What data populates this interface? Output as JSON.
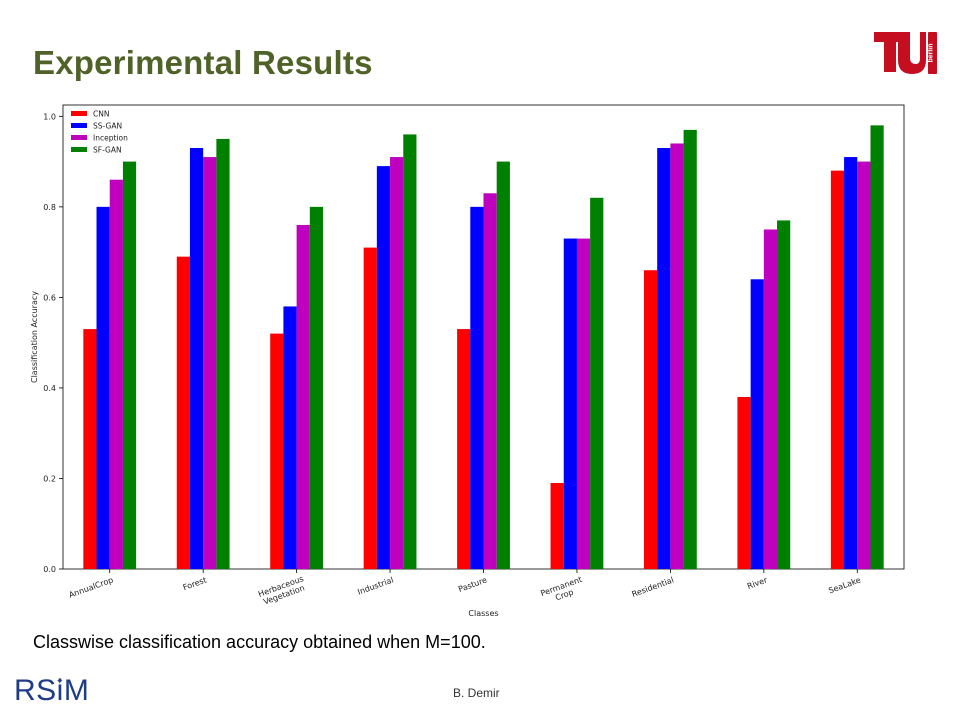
{
  "slide": {
    "title": "Experimental Results",
    "caption": "Classwise classification accuracy obtained when M=100.",
    "author": "B. Demir",
    "logo_left_text": "RSiM",
    "logo_right_text": "berlin",
    "logo_right_color": "#c50e1f",
    "title_color": "#4f6228"
  },
  "chart_data": {
    "type": "bar",
    "xlabel": "Classes",
    "ylabel": "Classification Accuracy",
    "ylim": [
      0,
      1.0
    ],
    "yticks": [
      0.0,
      0.2,
      0.4,
      0.6,
      0.8,
      1.0
    ],
    "legend_position": "top-left",
    "grid": false,
    "categories": [
      [
        "AnnualCrop"
      ],
      [
        "Forest"
      ],
      [
        "Herbaceous",
        "Vegetation"
      ],
      [
        "Industrial"
      ],
      [
        "Pasture"
      ],
      [
        "Permanent",
        "Crop"
      ],
      [
        "Residential"
      ],
      [
        "River"
      ],
      [
        "SeaLake"
      ]
    ],
    "series": [
      {
        "name": "CNN",
        "color": "#ff0000",
        "values": [
          0.53,
          0.69,
          0.52,
          0.71,
          0.53,
          0.19,
          0.66,
          0.38,
          0.88
        ]
      },
      {
        "name": "SS-GAN",
        "color": "#0000ff",
        "values": [
          0.8,
          0.93,
          0.58,
          0.89,
          0.8,
          0.73,
          0.93,
          0.64,
          0.91
        ]
      },
      {
        "name": "Inception",
        "color": "#bf00bf",
        "values": [
          0.86,
          0.91,
          0.76,
          0.91,
          0.83,
          0.73,
          0.94,
          0.75,
          0.9
        ]
      },
      {
        "name": "SF-GAN",
        "color": "#008000",
        "values": [
          0.9,
          0.95,
          0.8,
          0.96,
          0.9,
          0.82,
          0.97,
          0.77,
          0.98
        ]
      }
    ]
  }
}
